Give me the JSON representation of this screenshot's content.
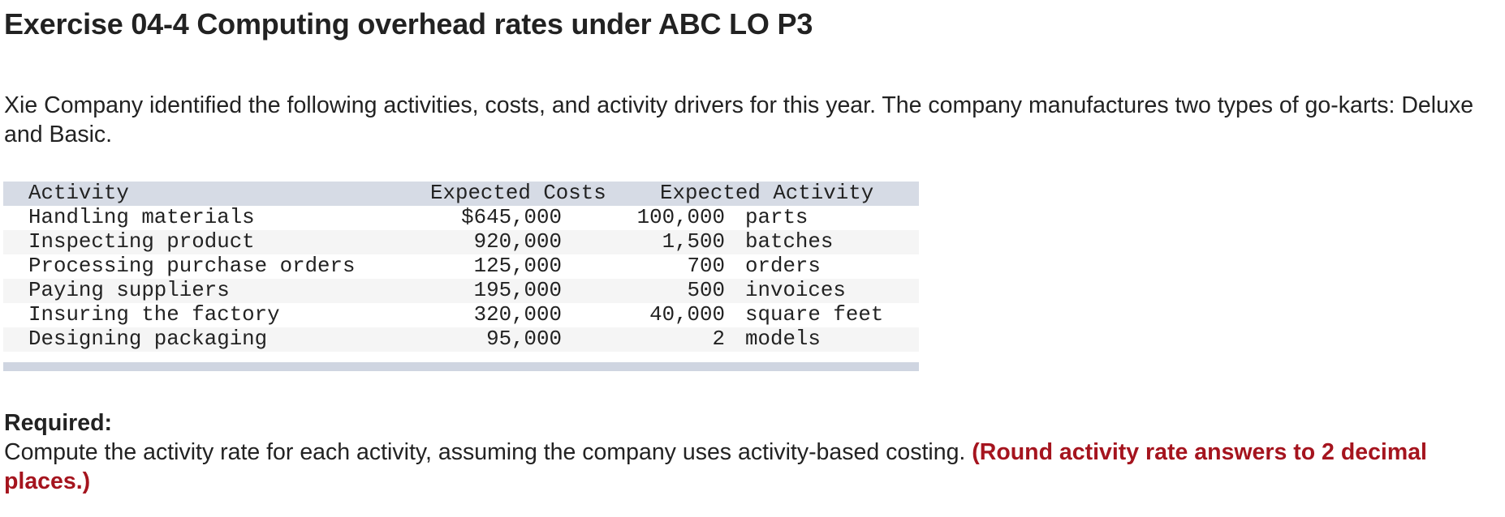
{
  "header": {
    "title": "Exercise 04-4 Computing overhead rates under ABC LO P3"
  },
  "intro": {
    "text": "Xie Company identified the following activities, costs, and activity drivers for this year. The company manufactures two types of go-karts: Deluxe and Basic."
  },
  "table": {
    "columns": {
      "activity": "Activity",
      "expected_costs": "Expected Costs",
      "expected_activity": "Expected Activity"
    },
    "rows": [
      {
        "activity": "Handling materials",
        "cost": "$645,000",
        "quantity": "100,000",
        "unit": "parts"
      },
      {
        "activity": "Inspecting product",
        "cost": "920,000",
        "quantity": "1,500",
        "unit": "batches"
      },
      {
        "activity": "Processing purchase orders",
        "cost": "125,000",
        "quantity": "700",
        "unit": "orders"
      },
      {
        "activity": "Paying suppliers",
        "cost": "195,000",
        "quantity": "500",
        "unit": "invoices"
      },
      {
        "activity": "Insuring the factory",
        "cost": "320,000",
        "quantity": "40,000",
        "unit": "square feet"
      },
      {
        "activity": "Designing packaging",
        "cost": "95,000",
        "quantity": "2",
        "unit": "models"
      }
    ]
  },
  "required": {
    "label": "Required:",
    "text": "Compute the activity rate for each activity, assuming the company uses activity-based costing.",
    "instruction": "(Round activity rate answers to 2 decimal places.)"
  },
  "colors": {
    "text": "#222222",
    "instruction_red": "#a5141e",
    "table_header_bg": "#d6dbe5",
    "table_stripe_bg": "#f5f5f5",
    "table_footer_bg": "#cfd5e1"
  }
}
